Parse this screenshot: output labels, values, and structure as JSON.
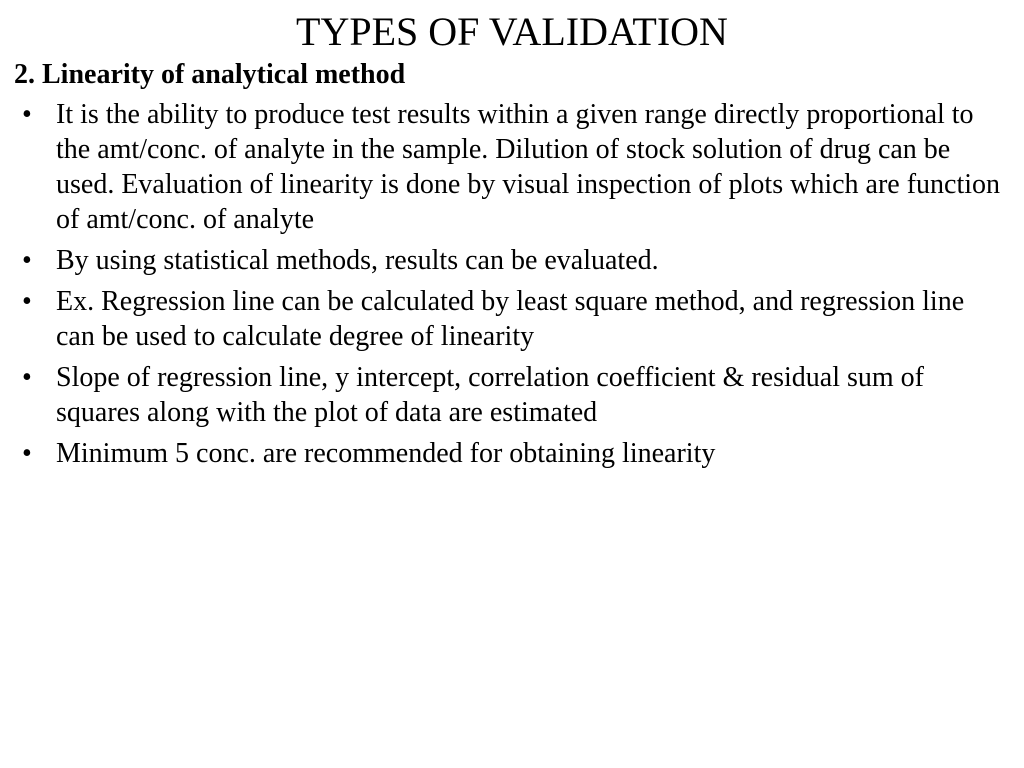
{
  "title": "TYPES OF VALIDATION",
  "subtitle": "2. Linearity of analytical method",
  "bullets": [
    "It is the ability to produce test results within a given range directly proportional to the amt/conc. of analyte in the sample. Dilution of stock solution of drug can be used. Evaluation of linearity is done by visual inspection of plots which are function of amt/conc. of analyte",
    "By using statistical methods, results can be evaluated.",
    "Ex. Regression line can be calculated by least square method, and regression line can be used to calculate degree of linearity",
    "Slope of regression line, y intercept, correlation coefficient & residual sum of squares along with the plot of data are estimated",
    "Minimum 5 conc. are recommended for obtaining linearity"
  ],
  "colors": {
    "background": "#ffffff",
    "text": "#000000"
  },
  "typography": {
    "font_family": "Times New Roman",
    "title_fontsize_pt": 30,
    "subtitle_fontsize_pt": 21,
    "body_fontsize_pt": 21,
    "title_weight": "normal",
    "subtitle_weight": "bold",
    "body_weight": "normal"
  }
}
